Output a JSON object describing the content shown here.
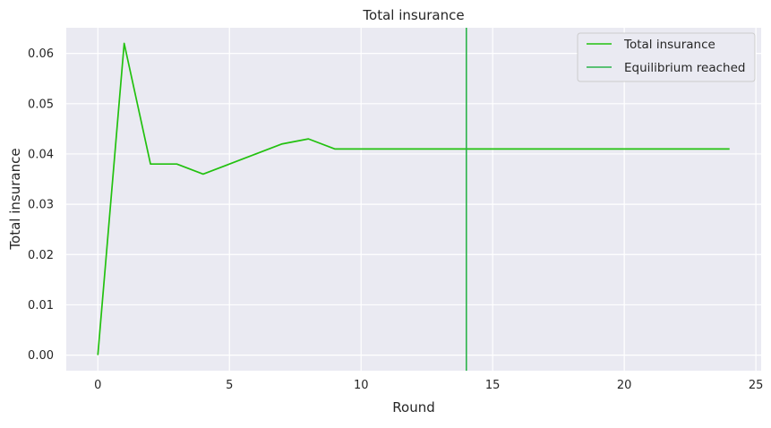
{
  "chart_data": {
    "type": "line",
    "title": "Total insurance",
    "xlabel": "Round",
    "ylabel": "Total insurance",
    "xlim": [
      -1.2,
      25.2
    ],
    "ylim": [
      -0.0031,
      0.0651
    ],
    "xticks": [
      0,
      5,
      10,
      15,
      20,
      25
    ],
    "yticks": [
      0.0,
      0.01,
      0.02,
      0.03,
      0.04,
      0.05,
      0.06
    ],
    "xtick_labels": [
      "0",
      "5",
      "10",
      "15",
      "20",
      "25"
    ],
    "ytick_labels": [
      "0.00",
      "0.01",
      "0.02",
      "0.03",
      "0.04",
      "0.05",
      "0.06"
    ],
    "grid": true,
    "legend_position": "top-right",
    "series": [
      {
        "name": "Total insurance",
        "color": "#22c10f",
        "x": [
          0,
          1,
          2,
          3,
          4,
          5,
          6,
          7,
          8,
          9,
          10,
          11,
          12,
          13,
          14,
          15,
          16,
          17,
          18,
          19,
          20,
          21,
          22,
          23,
          24
        ],
        "y": [
          0.0,
          0.062,
          0.038,
          0.038,
          0.036,
          0.038,
          0.04,
          0.042,
          0.043,
          0.041,
          0.041,
          0.041,
          0.041,
          0.041,
          0.041,
          0.041,
          0.041,
          0.041,
          0.041,
          0.041,
          0.041,
          0.041,
          0.041,
          0.041,
          0.041
        ]
      }
    ],
    "vlines": [
      {
        "name": "Equilibrium reached",
        "x": 14,
        "color": "#2bb34a"
      }
    ],
    "legend": [
      "Total insurance",
      "Equilibrium reached"
    ]
  }
}
